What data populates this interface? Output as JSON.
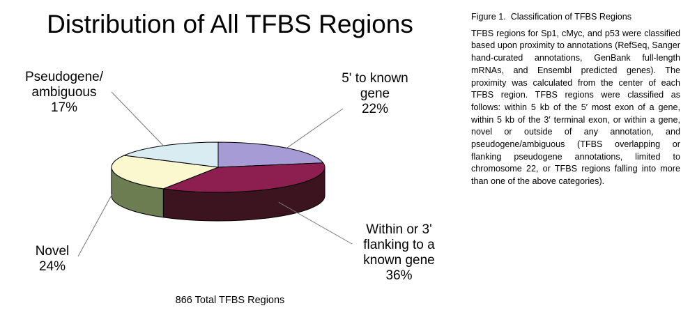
{
  "chart_data": {
    "type": "pie",
    "title": "Distribution of All TFBS Regions",
    "footer": "866 Total TFBS Regions",
    "slices": [
      {
        "label": "5' to known\ngene\n22%",
        "name": "5' to known gene",
        "value": 22,
        "top_color": "#a79bd6",
        "side_color": "#6a5f97"
      },
      {
        "label": "Within or 3'\nflanking to a\nknown gene\n36%",
        "name": "Within or 3' flanking to a known gene",
        "value": 36,
        "top_color": "#8c1f4f",
        "side_color": "#3b1420"
      },
      {
        "label": "Novel\n24%",
        "name": "Novel",
        "value": 24,
        "top_color": "#fbf8cf",
        "side_color": "#6d7d52"
      },
      {
        "label": "Pseudogene/\nambiguous\n17%",
        "name": "Pseudogene/ambiguous",
        "value": 17,
        "top_color": "#d9ecf2",
        "side_color": "#95a8ad"
      }
    ],
    "style": "3d-pie",
    "legend": "none"
  },
  "caption": {
    "heading": "Figure 1.  Classification of TFBS Regions",
    "body": "TFBS regions for Sp1, cMyc, and p53 were classified based upon proximity to annotations (RefSeq, Sanger hand-curated annotations, GenBank full-length mRNAs, and Ensembl predicted genes). The proximity was calculated from the center of each TFBS region. TFBS regions were classified as follows: within 5 kb of the 5′ most exon of a gene, within 5 kb of the 3′ terminal exon, or within a gene, novel or outside of any annotation, and pseudogene/ambiguous (TFBS overlapping or flanking pseudogene annotations, limited to chromosome 22, or TFBS regions falling into more than one of the above categories)."
  }
}
